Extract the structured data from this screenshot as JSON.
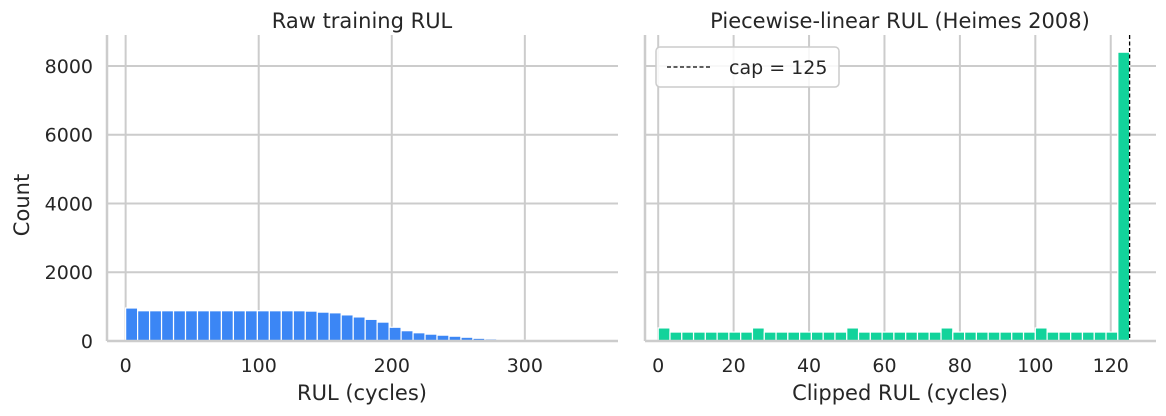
{
  "figure": {
    "ylabel": "Count"
  },
  "chart_data": [
    {
      "type": "bar",
      "title": "Raw training RUL",
      "xlabel": "RUL (cycles)",
      "ylabel": "Count",
      "color": "#3b86f5",
      "bin_width": 9.0,
      "bins_start": [
        0,
        9,
        18,
        27,
        36,
        45,
        54,
        63,
        72,
        81,
        90,
        99,
        108,
        117,
        126,
        135,
        144,
        153,
        162,
        171,
        180,
        189,
        198,
        207,
        216,
        225,
        234,
        243,
        252,
        261,
        270,
        279,
        288,
        297,
        306,
        315,
        324,
        333,
        342,
        351,
        360
      ],
      "values": [
        960,
        880,
        880,
        880,
        880,
        880,
        880,
        880,
        880,
        880,
        880,
        880,
        880,
        880,
        880,
        870,
        840,
        820,
        760,
        700,
        630,
        550,
        400,
        300,
        240,
        200,
        170,
        140,
        110,
        80,
        60,
        40,
        30,
        20,
        15,
        10,
        8,
        6,
        5,
        4,
        3
      ],
      "xlim": [
        -14,
        370
      ],
      "ylim": [
        0,
        8900
      ],
      "xticks": [
        0,
        100,
        200,
        300
      ],
      "yticks": [
        0,
        2000,
        4000,
        6000,
        8000
      ],
      "grid": true
    },
    {
      "type": "bar",
      "title": "Piecewise-linear RUL (Heimes 2008)",
      "xlabel": "Clipped RUL (cycles)",
      "ylabel": "",
      "color": "#12d39b",
      "bin_width": 3.125,
      "bins_start": [
        0,
        3.125,
        6.25,
        9.375,
        12.5,
        15.625,
        18.75,
        21.875,
        25,
        28.125,
        31.25,
        34.375,
        37.5,
        40.625,
        43.75,
        46.875,
        50,
        53.125,
        56.25,
        59.375,
        62.5,
        65.625,
        68.75,
        71.875,
        75,
        78.125,
        81.25,
        84.375,
        87.5,
        90.625,
        93.75,
        96.875,
        100,
        103.125,
        106.25,
        109.375,
        112.5,
        115.625,
        118.75,
        121.875
      ],
      "values": [
        380,
        260,
        260,
        260,
        260,
        260,
        260,
        260,
        380,
        260,
        260,
        260,
        260,
        260,
        260,
        260,
        380,
        260,
        260,
        260,
        260,
        260,
        260,
        260,
        380,
        260,
        260,
        260,
        260,
        260,
        260,
        260,
        380,
        260,
        260,
        260,
        260,
        260,
        260,
        8400
      ],
      "xlim": [
        -3.5,
        132
      ],
      "ylim": [
        0,
        8900
      ],
      "xticks": [
        0,
        20,
        40,
        60,
        80,
        100,
        120
      ],
      "yticks": [
        0,
        2000,
        4000,
        6000,
        8000
      ],
      "grid": true,
      "vline": {
        "x": 125,
        "label": "cap = 125",
        "style": "dashed",
        "color": "#000000"
      },
      "legend": {
        "position": "top-left",
        "entries": [
          "cap = 125"
        ]
      }
    }
  ]
}
